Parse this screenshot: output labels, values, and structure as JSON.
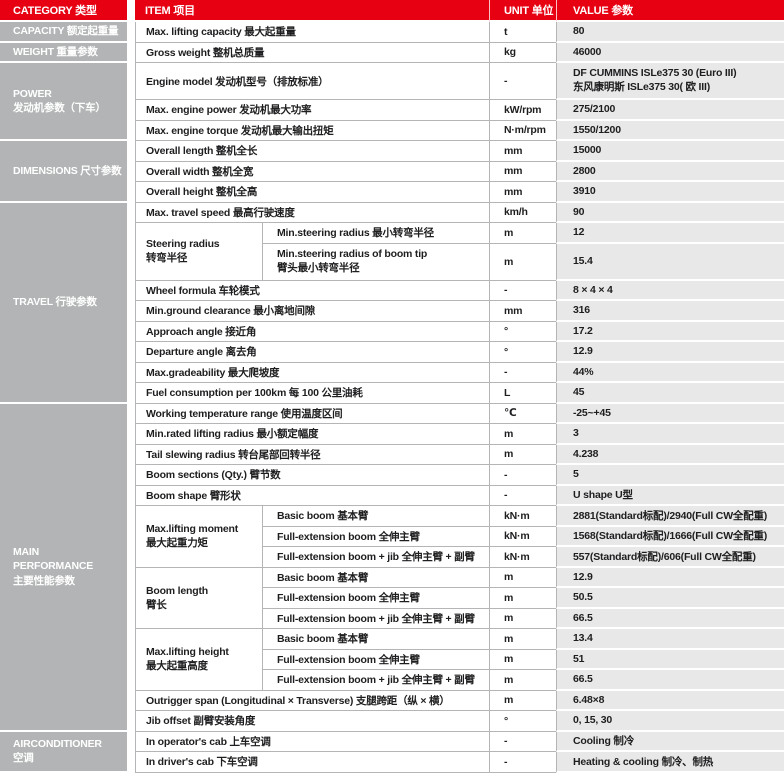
{
  "header": {
    "category": "CATEGORY 类型",
    "item": "ITEM 项目",
    "unit": "UNIT 单位",
    "value": "VALUE 参数"
  },
  "colors": {
    "header_red": "#e60012",
    "category_gray": "#b2b4b5",
    "value_cell_gray": "#e8e8e8",
    "rule_gray": "#b3b5b6"
  },
  "sections": [
    {
      "category": "CAPACITY 额定起重量",
      "blocks": [
        {
          "type": "row",
          "item": "Max. lifting capacity 最大起重量",
          "unit": "t",
          "value": "80"
        }
      ]
    },
    {
      "category": "WEIGHT 重量参数",
      "blocks": [
        {
          "type": "row",
          "item": "Gross weight 整机总质量",
          "unit": "kg",
          "value": "46000"
        }
      ]
    },
    {
      "category": "POWER\n发动机参数（下车）",
      "blocks": [
        {
          "type": "row",
          "tall": true,
          "item": "Engine model 发动机型号（排放标准）",
          "unit": "-",
          "value": "DF CUMMINS ISLe375 30 (Euro III)\n东风康明斯 ISLe375 30( 欧 III)"
        },
        {
          "type": "row",
          "item": "Max. engine power 发动机最大功率",
          "unit": "kW/rpm",
          "value": "275/2100"
        },
        {
          "type": "row",
          "item": "Max. engine torque 发动机最大输出扭矩",
          "unit": "N·m/rpm",
          "value": "1550/1200"
        }
      ]
    },
    {
      "category": "DIMENSIONS 尺寸参数",
      "blocks": [
        {
          "type": "row",
          "item": "Overall length 整机全长",
          "unit": "mm",
          "value": "15000"
        },
        {
          "type": "row",
          "item": "Overall width 整机全宽",
          "unit": "mm",
          "value": "2800"
        },
        {
          "type": "row",
          "item": "Overall height 整机全高",
          "unit": "mm",
          "value": "3910"
        }
      ]
    },
    {
      "category": "TRAVEL 行驶参数",
      "blocks": [
        {
          "type": "row",
          "item": "Max. travel speed 最高行驶速度",
          "unit": "km/h",
          "value": "90"
        },
        {
          "type": "group",
          "label": "Steering radius\n转弯半径",
          "rows": [
            {
              "item": "Min.steering radius 最小转弯半径",
              "unit": "m",
              "value": "12"
            },
            {
              "tall": true,
              "item": "Min.steering radius of boom tip\n臂头最小转弯半径",
              "unit": "m",
              "value": "15.4"
            }
          ]
        },
        {
          "type": "row",
          "item": "Wheel formula 车轮模式",
          "unit": "-",
          "value": "8 × 4 × 4"
        },
        {
          "type": "row",
          "item": "Min.ground clearance 最小离地间隙",
          "unit": "mm",
          "value": "316"
        },
        {
          "type": "row",
          "item": "Approach angle 接近角",
          "unit": "°",
          "value": "17.2"
        },
        {
          "type": "row",
          "item": "Departure angle 离去角",
          "unit": "°",
          "value": "12.9"
        },
        {
          "type": "row",
          "item": "Max.gradeability 最大爬坡度",
          "unit": "-",
          "value": "44%"
        },
        {
          "type": "row",
          "item": "Fuel consumption per 100km 每 100 公里油耗",
          "unit": "L",
          "value": "45"
        }
      ]
    },
    {
      "category": "MAIN\nPERFORMANCE\n主要性能参数",
      "blocks": [
        {
          "type": "row",
          "item": "Working temperature range 使用温度区间",
          "unit": "℃",
          "value": "-25~+45"
        },
        {
          "type": "row",
          "item": "Min.rated lifting radius 最小额定幅度",
          "unit": "m",
          "value": "3"
        },
        {
          "type": "row",
          "item": "Tail slewing radius 转台尾部回转半径",
          "unit": "m",
          "value": "4.238"
        },
        {
          "type": "row",
          "item": "Boom sections (Qty.) 臂节数",
          "unit": "-",
          "value": "5"
        },
        {
          "type": "row",
          "item": "Boom shape 臂形状",
          "unit": "-",
          "value": "U shape U型"
        },
        {
          "type": "group",
          "label": "Max.lifting moment\n最大起重力矩",
          "rows": [
            {
              "item": "Basic boom 基本臂",
              "unit": "kN·m",
              "value": "2881(Standard标配)/2940(Full CW全配重)"
            },
            {
              "item": "Full-extension boom 全伸主臂",
              "unit": "kN·m",
              "value": "1568(Standard标配)/1666(Full CW全配重)"
            },
            {
              "item": "Full-extension boom + jib 全伸主臂 + 副臂",
              "unit": "kN·m",
              "value": "557(Standard标配)/606(Full CW全配重)"
            }
          ]
        },
        {
          "type": "group",
          "label": "Boom length\n臂长",
          "rows": [
            {
              "item": "Basic boom 基本臂",
              "unit": "m",
              "value": "12.9"
            },
            {
              "item": "Full-extension boom 全伸主臂",
              "unit": "m",
              "value": "50.5"
            },
            {
              "item": "Full-extension boom + jib 全伸主臂 + 副臂",
              "unit": "m",
              "value": "66.5"
            }
          ]
        },
        {
          "type": "group",
          "label": "Max.lifting height\n最大起重高度",
          "rows": [
            {
              "item": "Basic boom 基本臂",
              "unit": "m",
              "value": "13.4"
            },
            {
              "item": "Full-extension boom 全伸主臂",
              "unit": "m",
              "value": "51"
            },
            {
              "item": "Full-extension boom + jib 全伸主臂 + 副臂",
              "unit": "m",
              "value": "66.5"
            }
          ]
        },
        {
          "type": "row",
          "item": "Outrigger span (Longitudinal × Transverse) 支腿跨距（纵 × 横）",
          "unit": "m",
          "value": "6.48×8"
        },
        {
          "type": "row",
          "item": "Jib offset 副臂安装角度",
          "unit": "°",
          "value": "0, 15, 30"
        }
      ]
    },
    {
      "category": "AIRCONDITIONER\n空调",
      "blocks": [
        {
          "type": "row",
          "item": "In operator's cab 上车空调",
          "unit": "-",
          "value": "Cooling 制冷"
        },
        {
          "type": "row",
          "item": "In driver's cab 下车空调",
          "unit": "-",
          "value": "Heating & cooling 制冷、制热"
        }
      ]
    }
  ]
}
